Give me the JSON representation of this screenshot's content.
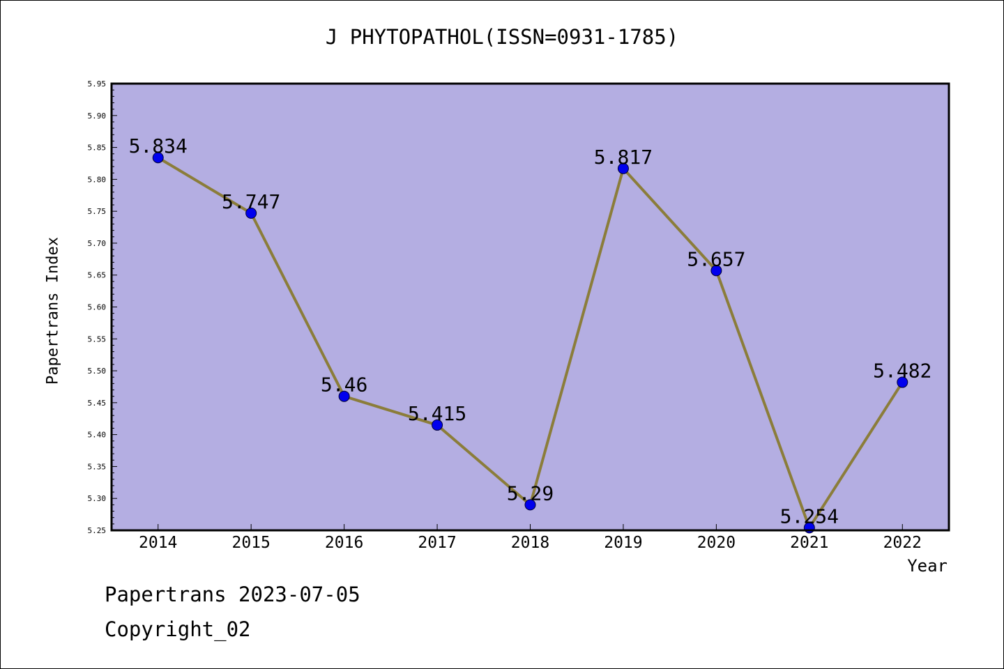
{
  "chart_data": {
    "type": "line",
    "title": "J PHYTOPATHOL(ISSN=0931-1785)",
    "xlabel": "Year",
    "ylabel": "Papertrans Index",
    "categories": [
      "2014",
      "2015",
      "2016",
      "2017",
      "2018",
      "2019",
      "2020",
      "2021",
      "2022"
    ],
    "series": [
      {
        "values": [
          5.834,
          5.747,
          5.46,
          5.415,
          5.29,
          5.817,
          5.657,
          5.254,
          5.482
        ]
      }
    ],
    "data_labels": [
      "5.834",
      "5.747",
      "5.46",
      "5.415",
      "5.29",
      "5.817",
      "5.657",
      "5.254",
      "5.482"
    ],
    "ylim": [
      5.25,
      5.95
    ],
    "yticks": [
      5.25,
      5.3,
      5.35,
      5.4,
      5.45,
      5.5,
      5.55,
      5.6,
      5.65,
      5.7,
      5.75,
      5.8,
      5.85,
      5.9,
      5.95
    ],
    "ytick_labels": [
      "5.25",
      "5.30",
      "5.35",
      "5.40",
      "5.45",
      "5.50",
      "5.55",
      "5.60",
      "5.65",
      "5.70",
      "5.75",
      "5.80",
      "5.85",
      "5.90",
      "5.95"
    ],
    "grid": false,
    "colors": {
      "plot_background": "#b4aee2",
      "line": "#8b7d3a",
      "marker": "#0000ee"
    }
  },
  "footer": {
    "line1": "Papertrans 2023-07-05",
    "line2": "Copyright_02"
  }
}
